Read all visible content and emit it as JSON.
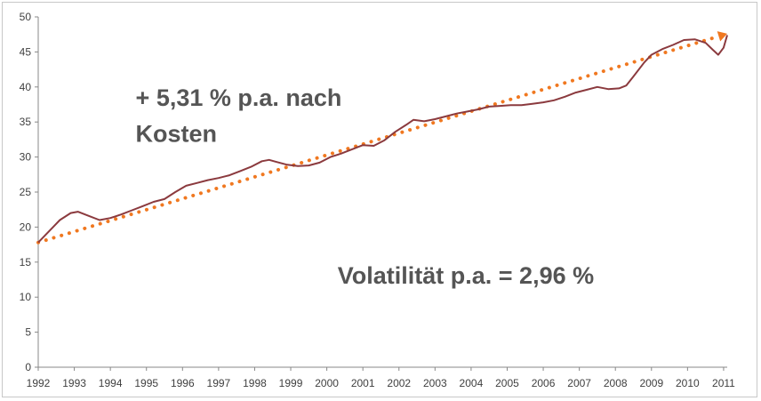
{
  "chart_data": {
    "type": "line",
    "title": "",
    "xlabel": "",
    "ylabel": "",
    "xlim": [
      1992,
      2011.1
    ],
    "ylim": [
      0,
      50
    ],
    "y_ticks": [
      0,
      5,
      10,
      15,
      20,
      25,
      30,
      35,
      40,
      45,
      50
    ],
    "x_ticks": [
      "1992",
      "1993",
      "1994",
      "1995",
      "1996",
      "1997",
      "1998",
      "1999",
      "2000",
      "2001",
      "2002",
      "2003",
      "2004",
      "2005",
      "2006",
      "2007",
      "2008",
      "2009",
      "2010",
      "2011"
    ],
    "grid": false,
    "legend": "none",
    "series": [
      {
        "color": "#8b3a3e",
        "style": "solid",
        "points": [
          [
            1992.0,
            17.8
          ],
          [
            1992.3,
            19.4
          ],
          [
            1992.6,
            21.0
          ],
          [
            1992.9,
            22.0
          ],
          [
            1993.1,
            22.2
          ],
          [
            1993.4,
            21.6
          ],
          [
            1993.7,
            21.0
          ],
          [
            1994.0,
            21.3
          ],
          [
            1994.3,
            21.8
          ],
          [
            1994.6,
            22.4
          ],
          [
            1994.9,
            23.0
          ],
          [
            1995.2,
            23.6
          ],
          [
            1995.5,
            24.0
          ],
          [
            1995.8,
            25.0
          ],
          [
            1996.1,
            25.9
          ],
          [
            1996.4,
            26.3
          ],
          [
            1996.7,
            26.7
          ],
          [
            1997.0,
            27.0
          ],
          [
            1997.3,
            27.4
          ],
          [
            1997.6,
            28.0
          ],
          [
            1997.9,
            28.6
          ],
          [
            1998.2,
            29.4
          ],
          [
            1998.4,
            29.6
          ],
          [
            1998.6,
            29.3
          ],
          [
            1998.9,
            28.9
          ],
          [
            1999.2,
            28.7
          ],
          [
            1999.5,
            28.8
          ],
          [
            1999.8,
            29.2
          ],
          [
            2000.1,
            30.0
          ],
          [
            2000.4,
            30.5
          ],
          [
            2000.7,
            31.1
          ],
          [
            2001.0,
            31.7
          ],
          [
            2001.3,
            31.6
          ],
          [
            2001.6,
            32.4
          ],
          [
            2001.9,
            33.6
          ],
          [
            2002.2,
            34.6
          ],
          [
            2002.4,
            35.3
          ],
          [
            2002.7,
            35.1
          ],
          [
            2003.0,
            35.4
          ],
          [
            2003.3,
            35.8
          ],
          [
            2003.6,
            36.2
          ],
          [
            2003.9,
            36.5
          ],
          [
            2004.2,
            36.8
          ],
          [
            2004.5,
            37.2
          ],
          [
            2004.8,
            37.3
          ],
          [
            2005.1,
            37.4
          ],
          [
            2005.4,
            37.4
          ],
          [
            2005.7,
            37.6
          ],
          [
            2006.0,
            37.8
          ],
          [
            2006.3,
            38.1
          ],
          [
            2006.6,
            38.6
          ],
          [
            2006.9,
            39.2
          ],
          [
            2007.2,
            39.6
          ],
          [
            2007.5,
            40.0
          ],
          [
            2007.8,
            39.7
          ],
          [
            2008.1,
            39.8
          ],
          [
            2008.3,
            40.2
          ],
          [
            2008.5,
            41.5
          ],
          [
            2008.8,
            43.5
          ],
          [
            2009.0,
            44.6
          ],
          [
            2009.3,
            45.4
          ],
          [
            2009.6,
            46.0
          ],
          [
            2009.9,
            46.7
          ],
          [
            2010.2,
            46.8
          ],
          [
            2010.5,
            46.3
          ],
          [
            2010.7,
            45.3
          ],
          [
            2010.85,
            44.6
          ],
          [
            2011.0,
            45.6
          ],
          [
            2011.1,
            47.4
          ]
        ]
      },
      {
        "color": "#f07820",
        "style": "dotted",
        "points": [
          [
            1992.0,
            17.8
          ],
          [
            2011.1,
            47.6
          ]
        ]
      }
    ],
    "annotations": [
      {
        "text": "+ 5,31 % p.a. nach",
        "at": [
          1994.7,
          37.3
        ]
      },
      {
        "text": "Kosten",
        "at": [
          1994.7,
          32.2
        ]
      },
      {
        "text": "Volatilität p.a. = 2,96 %",
        "at": [
          2000.3,
          11.9
        ]
      }
    ]
  }
}
